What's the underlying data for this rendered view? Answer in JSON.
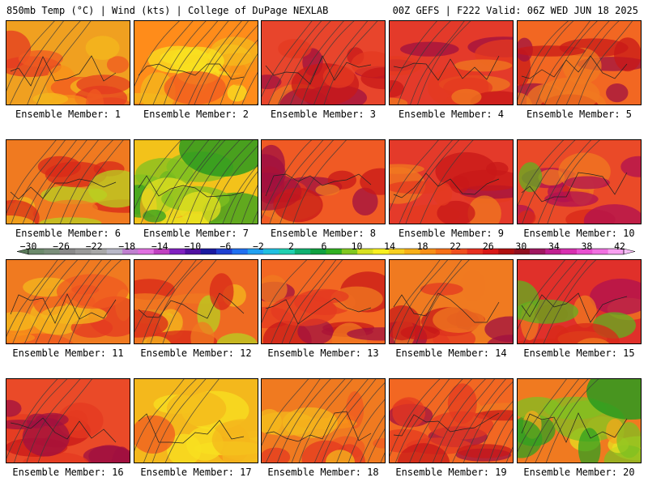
{
  "header": {
    "left": "850mb Temp (°C) | Wind (kts) | College of DuPage NEXLAB",
    "right": "00Z GEFS | F222 Valid: 06Z WED JUN 18 2025"
  },
  "members": [
    {
      "label": "Ensemble Member: 1",
      "base": "#f0a020",
      "scheme": "warm",
      "contours": "light"
    },
    {
      "label": "Ensemble Member: 2",
      "base": "#ff8c1a",
      "scheme": "warm-yellow",
      "contours": "dense"
    },
    {
      "label": "Ensemble Member: 3",
      "base": "#e8452c",
      "scheme": "hot",
      "contours": "medium"
    },
    {
      "label": "Ensemble Member: 4",
      "base": "#e43a2a",
      "scheme": "hot",
      "contours": "light"
    },
    {
      "label": "Ensemble Member: 5",
      "base": "#f26722",
      "scheme": "hot",
      "contours": "medium"
    },
    {
      "label": "Ensemble Member: 6",
      "base": "#f07a20",
      "scheme": "warm-green",
      "contours": "medium"
    },
    {
      "label": "Ensemble Member: 7",
      "base": "#f3c21a",
      "scheme": "cool-green",
      "contours": "dense"
    },
    {
      "label": "Ensemble Member: 8",
      "base": "#f05a24",
      "scheme": "hot",
      "contours": "light"
    },
    {
      "label": "Ensemble Member: 9",
      "base": "#e43a2a",
      "scheme": "hot",
      "contours": "light"
    },
    {
      "label": "Ensemble Member: 10",
      "base": "#ea4a28",
      "scheme": "hot-green",
      "contours": "light"
    },
    {
      "label": "Ensemble Member: 11",
      "base": "#f07a20",
      "scheme": "warm",
      "contours": "medium"
    },
    {
      "label": "Ensemble Member: 12",
      "base": "#ef6a22",
      "scheme": "warm-green",
      "contours": "light"
    },
    {
      "label": "Ensemble Member: 13",
      "base": "#f26722",
      "scheme": "hot",
      "contours": "light"
    },
    {
      "label": "Ensemble Member: 14",
      "base": "#f07a20",
      "scheme": "hot",
      "contours": "light"
    },
    {
      "label": "Ensemble Member: 15",
      "base": "#e0302a",
      "scheme": "hot-green",
      "contours": "light"
    },
    {
      "label": "Ensemble Member: 16",
      "base": "#ea4a28",
      "scheme": "hot",
      "contours": "light"
    },
    {
      "label": "Ensemble Member: 17",
      "base": "#f4b81c",
      "scheme": "warm-yellow",
      "contours": "light"
    },
    {
      "label": "Ensemble Member: 18",
      "base": "#f07a20",
      "scheme": "warm",
      "contours": "dense"
    },
    {
      "label": "Ensemble Member: 19",
      "base": "#f26722",
      "scheme": "hot",
      "contours": "dense"
    },
    {
      "label": "Ensemble Member: 20",
      "base": "#f07a20",
      "scheme": "cool-green",
      "contours": "light"
    }
  ],
  "colorbar": {
    "ticks": [
      "−30",
      "−26",
      "−22",
      "−18",
      "−14",
      "−10",
      "−6",
      "−2",
      "2",
      "6",
      "10",
      "14",
      "18",
      "22",
      "26",
      "30",
      "34",
      "38",
      "42"
    ],
    "colors": [
      "#6b8a6b",
      "#7a8f7a",
      "#8a8a8a",
      "#9a9a9a",
      "#a8a8a8",
      "#b8b8c8",
      "#c080d0",
      "#e070e0",
      "#c040c0",
      "#8020c0",
      "#5010a0",
      "#1a1aa0",
      "#1e40d0",
      "#2070f0",
      "#20a0f0",
      "#20c0e0",
      "#20d0b0",
      "#10b070",
      "#10a040",
      "#30b020",
      "#80c820",
      "#d8e020",
      "#f8f020",
      "#f8d020",
      "#f8b018",
      "#f89018",
      "#f87018",
      "#f05020",
      "#e83020",
      "#d81818",
      "#b01010",
      "#901020",
      "#a01860",
      "#c02090",
      "#d830b0",
      "#e850d0",
      "#f070e0",
      "#f8a0f0"
    ]
  }
}
